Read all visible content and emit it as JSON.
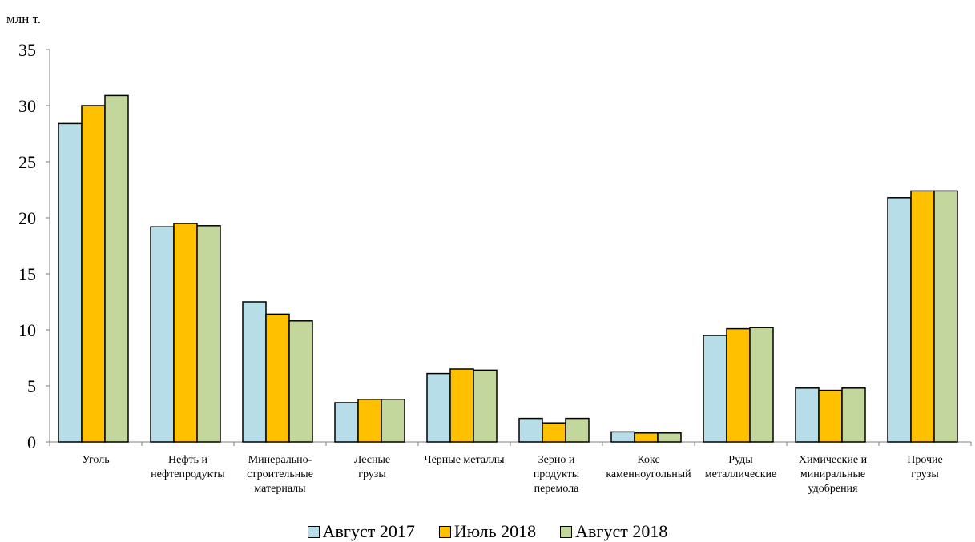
{
  "chart_data": {
    "type": "bar",
    "unit_label": "млн т.",
    "categories": [
      [
        "Уголь"
      ],
      [
        "Нефть и",
        "нефтепродукты"
      ],
      [
        "Минерально-",
        "строительные",
        "материалы"
      ],
      [
        "Лесные",
        "грузы"
      ],
      [
        "Чёрные металлы"
      ],
      [
        "Зерно и",
        "продукты",
        "перемола"
      ],
      [
        "Кокс",
        "каменноугольный"
      ],
      [
        "Руды",
        "металлические"
      ],
      [
        "Химические и",
        "миниральные",
        "удобрения"
      ],
      [
        "Прочие",
        "грузы"
      ]
    ],
    "series": [
      {
        "name": "Август 2017",
        "color": "#b7dde8",
        "values": [
          28.4,
          19.2,
          12.5,
          3.5,
          6.1,
          2.1,
          0.9,
          9.5,
          4.8,
          21.8
        ]
      },
      {
        "name": "Июль 2018",
        "color": "#ffc000",
        "values": [
          30.0,
          19.5,
          11.4,
          3.8,
          6.5,
          1.7,
          0.8,
          10.1,
          4.6,
          22.4
        ]
      },
      {
        "name": "Август 2018",
        "color": "#c3d69b",
        "values": [
          30.9,
          19.3,
          10.8,
          3.8,
          6.4,
          2.1,
          0.8,
          10.2,
          4.8,
          22.4
        ]
      }
    ],
    "y_ticks": [
      "0",
      "5",
      "10",
      "15",
      "20",
      "25",
      "30",
      "35"
    ],
    "ylim": [
      0,
      35
    ],
    "grid": false,
    "legend_position": "bottom"
  }
}
